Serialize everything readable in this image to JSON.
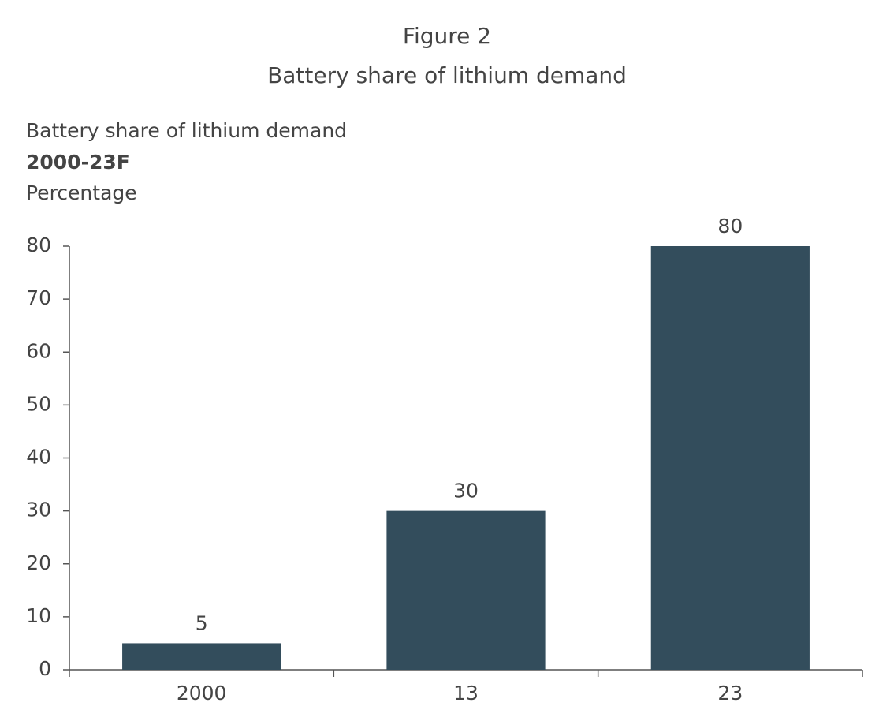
{
  "chart_data": {
    "type": "bar",
    "title": "Figure 2",
    "subtitle": "Battery share of lithium demand",
    "chart_heading": "Battery share of lithium demand",
    "period": "2000-23F",
    "y_label": "Percentage",
    "categories": [
      "2000",
      "13",
      "23"
    ],
    "values": [
      5,
      30,
      80
    ],
    "color": "#334d5c",
    "ylim": [
      0,
      80
    ],
    "yticks": [
      0,
      10,
      20,
      30,
      40,
      50,
      60,
      70,
      80
    ],
    "grid": false
  }
}
